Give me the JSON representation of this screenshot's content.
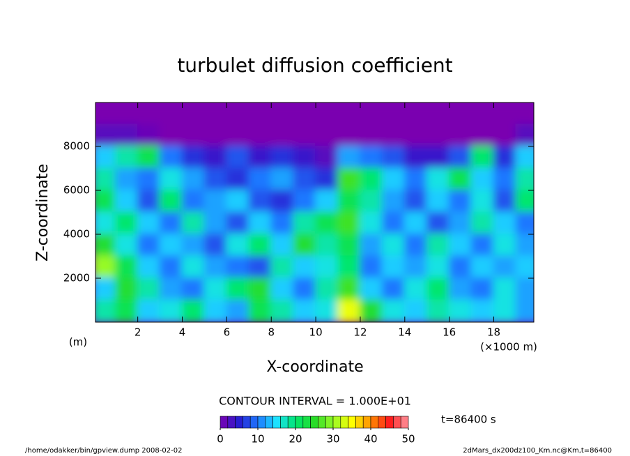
{
  "chart_data": {
    "type": "heatmap",
    "title": "turbulet diffusion coefficient",
    "xlabel": "X-coordinate",
    "ylabel": "Z-coordinate",
    "xunit": "(m)",
    "xscale_label": "(×1000 m)",
    "contour_interval": "CONTOUR INTERVAL = 1.000E+01",
    "time_label": "t=86400 s",
    "footer_left": "/home/odakker/bin/gpview.dump  2008-02-02",
    "footer_right": "2dMars_dx200dz100_Km.nc@Km,t=86400",
    "x": [
      0.5,
      1.5,
      2.5,
      3.5,
      4.5,
      5.5,
      6.5,
      7.5,
      8.5,
      9.5,
      10.5,
      11.5,
      12.5,
      13.5,
      14.5,
      15.5,
      16.5,
      17.5,
      18.5,
      19.5
    ],
    "y": [
      9500,
      8500,
      7500,
      6500,
      5500,
      4500,
      3500,
      2500,
      1500,
      500
    ],
    "z": [
      [
        0,
        0,
        0,
        0,
        0,
        0,
        0,
        0,
        0,
        0,
        0,
        0,
        0,
        0,
        0,
        0,
        0,
        0,
        0,
        0
      ],
      [
        2,
        2,
        1,
        0,
        0,
        0,
        0,
        0,
        0,
        0,
        0,
        0,
        0,
        0,
        0,
        0,
        0,
        0,
        0,
        2
      ],
      [
        14,
        18,
        22,
        10,
        6,
        4,
        8,
        4,
        6,
        4,
        2,
        12,
        10,
        8,
        4,
        4,
        8,
        20,
        6,
        14
      ],
      [
        18,
        12,
        10,
        16,
        12,
        8,
        6,
        10,
        12,
        8,
        6,
        26,
        20,
        14,
        10,
        16,
        22,
        14,
        10,
        18
      ],
      [
        22,
        14,
        8,
        20,
        10,
        12,
        14,
        8,
        6,
        10,
        14,
        22,
        18,
        12,
        8,
        14,
        10,
        16,
        8,
        20
      ],
      [
        16,
        20,
        14,
        10,
        18,
        12,
        8,
        14,
        10,
        18,
        22,
        26,
        16,
        10,
        14,
        8,
        12,
        18,
        14,
        10
      ],
      [
        24,
        16,
        10,
        14,
        12,
        8,
        16,
        20,
        14,
        24,
        18,
        22,
        12,
        16,
        10,
        18,
        14,
        10,
        16,
        12
      ],
      [
        30,
        22,
        14,
        10,
        16,
        12,
        10,
        8,
        18,
        14,
        16,
        20,
        10,
        14,
        12,
        16,
        10,
        14,
        12,
        14
      ],
      [
        14,
        24,
        18,
        12,
        10,
        16,
        20,
        24,
        14,
        10,
        18,
        26,
        14,
        10,
        16,
        20,
        12,
        10,
        16,
        12
      ],
      [
        18,
        22,
        14,
        16,
        20,
        14,
        12,
        22,
        18,
        14,
        16,
        34,
        24,
        16,
        14,
        18,
        16,
        14,
        16,
        12
      ]
    ],
    "xlim": [
      0.1,
      19.8
    ],
    "ylim": [
      0,
      10000
    ],
    "xticks": [
      2,
      4,
      6,
      8,
      10,
      12,
      14,
      16,
      18
    ],
    "yticks": [
      2000,
      4000,
      6000,
      8000
    ],
    "clim": [
      0,
      50
    ],
    "cticks": [
      0,
      10,
      20,
      30,
      40,
      50
    ]
  }
}
